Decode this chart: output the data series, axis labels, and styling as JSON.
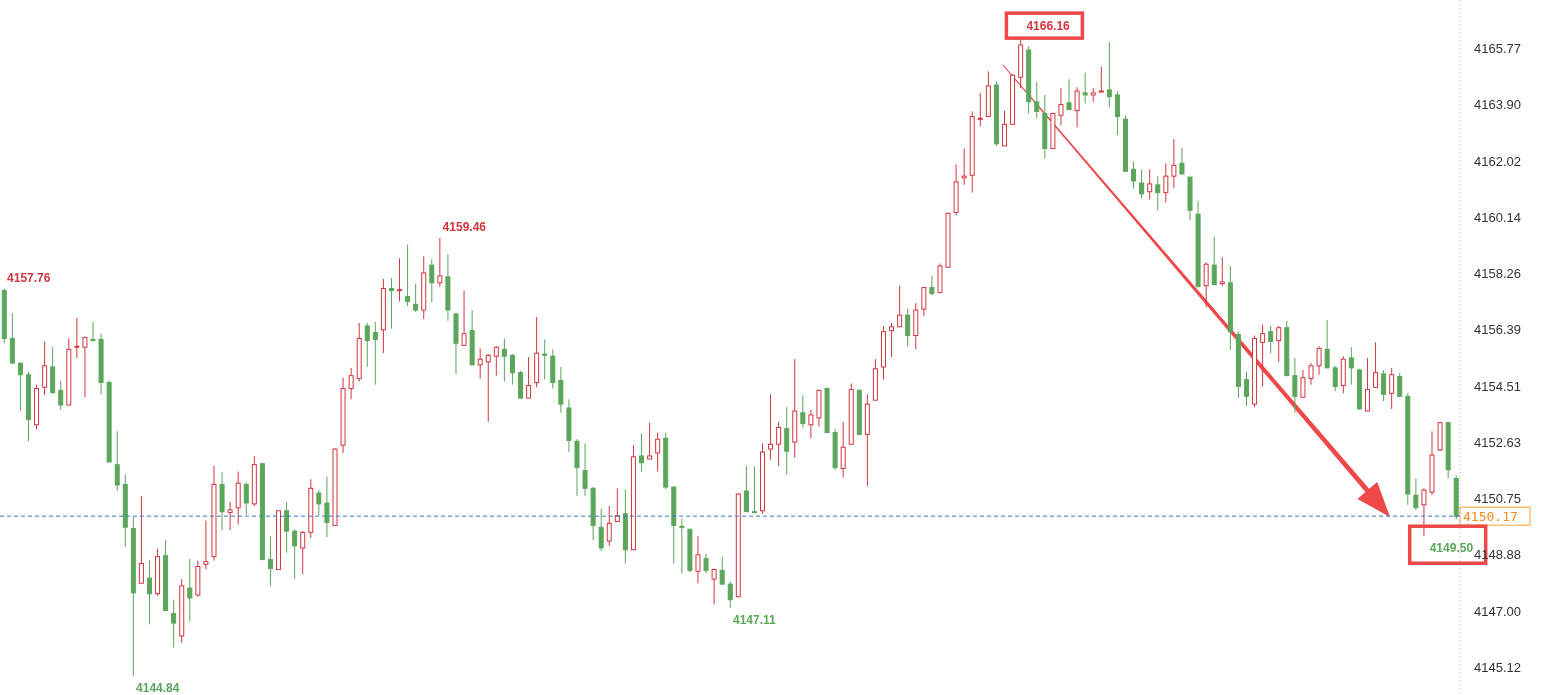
{
  "chart_data": {
    "type": "candlestick",
    "categories": [
      null,
      null,
      null,
      null,
      null,
      null,
      null,
      null,
      null,
      null,
      null,
      null,
      null,
      null,
      null,
      null,
      null,
      null,
      null,
      null,
      null,
      null,
      null,
      null,
      null,
      null,
      null,
      null,
      null,
      null,
      null,
      null,
      null,
      null,
      null,
      null,
      null,
      null,
      null,
      null,
      null,
      null,
      null,
      null,
      null,
      null,
      null,
      null,
      null,
      null,
      null,
      null,
      null,
      null,
      null,
      null,
      null,
      null,
      null,
      null,
      null,
      null,
      null,
      null,
      null,
      null,
      null,
      null,
      null,
      null,
      null,
      null,
      null,
      null,
      null,
      null,
      null,
      null,
      null,
      null,
      null,
      null,
      null,
      null,
      null,
      null,
      null,
      null,
      null,
      null,
      null,
      null,
      null,
      null,
      null,
      null,
      null,
      null,
      null,
      null,
      null,
      null,
      null,
      null,
      null,
      null,
      null,
      null,
      null,
      null,
      null,
      null,
      null,
      null,
      null,
      null,
      null,
      null,
      null,
      null,
      null,
      null,
      null,
      null,
      null,
      null,
      null,
      null,
      null,
      null,
      null,
      null,
      null,
      null,
      null,
      null,
      null,
      null,
      null,
      null,
      null,
      null,
      null,
      null,
      null,
      null,
      null,
      null,
      null,
      null,
      null,
      null,
      null,
      null,
      null,
      null,
      null,
      null,
      null,
      null,
      null,
      null,
      null,
      null,
      null,
      null,
      null,
      null,
      null,
      null,
      null,
      null,
      null,
      null,
      null,
      null,
      null,
      null,
      null,
      null,
      null
    ],
    "ohlc": [
      [
        4157.7,
        4157.76,
        4155.94,
        4156.1
      ],
      [
        4156.1,
        4156.95,
        4155.25,
        4155.28
      ],
      [
        4155.28,
        4155.28,
        4153.68,
        4154.89
      ],
      [
        4154.89,
        4154.99,
        4152.67,
        4153.39
      ],
      [
        4153.22,
        4154.56,
        4153.06,
        4154.43
      ],
      [
        4154.47,
        4156.0,
        4154.21,
        4155.19
      ],
      [
        4155.15,
        4155.81,
        4154.24,
        4154.3
      ],
      [
        4154.37,
        4154.7,
        4153.72,
        4153.88
      ],
      [
        4153.88,
        4156.1,
        4153.88,
        4155.74
      ],
      [
        4155.81,
        4156.79,
        4155.45,
        4155.84
      ],
      [
        4155.81,
        4156.17,
        4154.14,
        4156.13
      ],
      [
        4156.07,
        4156.66,
        4156.0,
        4156.03
      ],
      [
        4156.07,
        4156.26,
        4154.24,
        4154.63
      ],
      [
        4154.63,
        4154.7,
        4151.98,
        4151.98
      ],
      [
        4151.89,
        4153.0,
        4151.01,
        4151.21
      ],
      [
        4151.23,
        4151.56,
        4149.14,
        4149.8
      ],
      [
        4149.76,
        4150.16,
        4144.84,
        4147.61
      ],
      [
        4147.93,
        4150.84,
        4147.93,
        4148.59
      ],
      [
        4148.1,
        4148.69,
        4146.56,
        4147.58
      ],
      [
        4147.58,
        4149.08,
        4147.51,
        4148.82
      ],
      [
        4148.85,
        4149.37,
        4147.02,
        4147.02
      ],
      [
        4146.92,
        4147.38,
        4145.78,
        4146.6
      ],
      [
        4146.17,
        4148.07,
        4145.94,
        4147.84
      ],
      [
        4147.77,
        4148.75,
        4146.66,
        4147.44
      ],
      [
        4147.54,
        4148.69,
        4147.48,
        4148.49
      ],
      [
        4148.56,
        4150.02,
        4148.39,
        4148.65
      ],
      [
        4148.82,
        4151.85,
        4148.69,
        4151.23
      ],
      [
        4151.23,
        4151.63,
        4149.7,
        4150.32
      ],
      [
        4150.29,
        4150.65,
        4149.7,
        4150.38
      ],
      [
        4150.45,
        4151.66,
        4149.89,
        4151.27
      ],
      [
        4151.23,
        4151.3,
        4150.22,
        4150.61
      ],
      [
        4150.58,
        4152.18,
        4150.51,
        4151.89
      ],
      [
        4151.92,
        4151.95,
        4148.72,
        4148.72
      ],
      [
        4148.72,
        4149.5,
        4147.84,
        4148.42
      ],
      [
        4148.39,
        4150.35,
        4148.39,
        4150.35
      ],
      [
        4150.35,
        4150.65,
        4148.95,
        4149.67
      ],
      [
        4149.67,
        4149.73,
        4148.07,
        4149.18
      ],
      [
        4149.11,
        4149.67,
        4148.23,
        4149.63
      ],
      [
        4149.63,
        4151.4,
        4149.44,
        4151.1
      ],
      [
        4150.94,
        4151.04,
        4150.19,
        4150.58
      ],
      [
        4150.61,
        4151.49,
        4149.47,
        4149.96
      ],
      [
        4149.86,
        4152.44,
        4149.86,
        4152.41
      ],
      [
        4152.54,
        4154.79,
        4152.28,
        4154.43
      ],
      [
        4154.43,
        4155.12,
        4154.07,
        4154.86
      ],
      [
        4154.76,
        4156.62,
        4154.66,
        4156.1
      ],
      [
        4156.52,
        4156.62,
        4155.15,
        4156.03
      ],
      [
        4156.3,
        4156.66,
        4154.56,
        4156.07
      ],
      [
        4156.39,
        4158.09,
        4155.61,
        4157.77
      ],
      [
        4157.77,
        4158.12,
        4156.43,
        4157.7
      ],
      [
        4157.7,
        4158.78,
        4157.34,
        4157.73
      ],
      [
        4157.5,
        4159.23,
        4157.18,
        4157.34
      ],
      [
        4157.24,
        4157.93,
        4156.98,
        4157.05
      ],
      [
        4157.05,
        4158.84,
        4156.75,
        4158.29
      ],
      [
        4158.55,
        4158.75,
        4157.31,
        4157.96
      ],
      [
        4157.96,
        4159.46,
        4157.83,
        4158.19
      ],
      [
        4158.16,
        4158.91,
        4156.69,
        4157.05
      ],
      [
        4156.92,
        4156.95,
        4154.92,
        4155.94
      ],
      [
        4155.87,
        4157.7,
        4155.87,
        4156.26
      ],
      [
        4156.36,
        4157.05,
        4155.22,
        4155.22
      ],
      [
        4155.22,
        4155.77,
        4154.76,
        4155.41
      ],
      [
        4155.32,
        4155.58,
        4153.32,
        4155.54
      ],
      [
        4155.51,
        4155.84,
        4154.86,
        4155.81
      ],
      [
        4155.74,
        4156.1,
        4154.66,
        4155.51
      ],
      [
        4155.54,
        4155.58,
        4154.56,
        4154.96
      ],
      [
        4154.96,
        4155.02,
        4154.11,
        4154.11
      ],
      [
        4154.11,
        4155.48,
        4154.11,
        4154.53
      ],
      [
        4154.63,
        4156.82,
        4154.47,
        4155.61
      ],
      [
        4155.58,
        4156.07,
        4154.73,
        4155.54
      ],
      [
        4155.51,
        4155.74,
        4154.43,
        4154.63
      ],
      [
        4154.7,
        4155.15,
        4153.62,
        4153.91
      ],
      [
        4153.78,
        4154.07,
        4152.31,
        4152.7
      ],
      [
        4152.67,
        4152.74,
        4150.84,
        4151.79
      ],
      [
        4151.69,
        4152.6,
        4150.84,
        4151.1
      ],
      [
        4151.1,
        4151.14,
        4149.37,
        4149.86
      ],
      [
        4149.8,
        4150.42,
        4149.01,
        4149.11
      ],
      [
        4149.34,
        4150.51,
        4149.18,
        4149.93
      ],
      [
        4149.99,
        4151.1,
        4149.99,
        4150.19
      ],
      [
        4150.25,
        4151.07,
        4148.59,
        4149.05
      ],
      [
        4149.05,
        4152.54,
        4149.05,
        4152.15
      ],
      [
        4152.18,
        4152.93,
        4151.66,
        4151.95
      ],
      [
        4152.08,
        4153.29,
        4152.08,
        4152.18
      ],
      [
        4152.28,
        4152.96,
        4151.66,
        4152.74
      ],
      [
        4152.77,
        4152.96,
        4151.07,
        4151.14
      ],
      [
        4151.14,
        4151.17,
        4148.59,
        4149.86
      ],
      [
        4149.83,
        4150.09,
        4148.26,
        4149.8
      ],
      [
        4149.73,
        4149.76,
        4148.29,
        4148.36
      ],
      [
        4148.33,
        4149.5,
        4147.93,
        4148.88
      ],
      [
        4148.75,
        4148.91,
        4148.26,
        4148.36
      ],
      [
        4148.07,
        4148.42,
        4147.22,
        4148.39
      ],
      [
        4148.36,
        4148.82,
        4147.9,
        4147.9
      ],
      [
        4147.9,
        4148.0,
        4147.11,
        4147.38
      ],
      [
        4147.48,
        4150.94,
        4147.48,
        4150.91
      ],
      [
        4151.01,
        4151.85,
        4150.32,
        4150.32
      ],
      [
        4150.32,
        4151.82,
        4150.29,
        4150.29
      ],
      [
        4150.35,
        4152.6,
        4150.25,
        4152.31
      ],
      [
        4152.41,
        4154.24,
        4152.05,
        4152.57
      ],
      [
        4152.57,
        4153.32,
        4151.85,
        4153.13
      ],
      [
        4153.09,
        4153.81,
        4151.56,
        4152.34
      ],
      [
        4152.64,
        4155.41,
        4152.12,
        4153.68
      ],
      [
        4153.62,
        4154.21,
        4153.13,
        4153.26
      ],
      [
        4153.22,
        4153.72,
        4152.77,
        4153.55
      ],
      [
        4153.45,
        4154.4,
        4153.16,
        4154.37
      ],
      [
        4154.43,
        4154.47,
        4152.96,
        4152.96
      ],
      [
        4152.96,
        4153.09,
        4151.72,
        4151.79
      ],
      [
        4151.76,
        4153.32,
        4151.46,
        4152.47
      ],
      [
        4152.57,
        4154.6,
        4152.57,
        4154.4
      ],
      [
        4154.37,
        4154.4,
        4152.9,
        4152.9
      ],
      [
        4152.9,
        4154.24,
        4151.17,
        4153.91
      ],
      [
        4154.04,
        4155.41,
        4154.04,
        4155.09
      ],
      [
        4155.15,
        4156.52,
        4154.73,
        4156.33
      ],
      [
        4156.36,
        4156.62,
        4155.48,
        4156.49
      ],
      [
        4156.49,
        4157.86,
        4156.49,
        4156.88
      ],
      [
        4156.88,
        4157.11,
        4155.84,
        4156.2
      ],
      [
        4156.2,
        4157.28,
        4155.74,
        4157.05
      ],
      [
        4157.08,
        4157.83,
        4156.85,
        4157.8
      ],
      [
        4157.8,
        4158.19,
        4157.54,
        4157.6
      ],
      [
        4157.63,
        4158.61,
        4157.63,
        4158.52
      ],
      [
        4158.48,
        4160.31,
        4158.48,
        4160.28
      ],
      [
        4160.31,
        4161.91,
        4160.21,
        4161.33
      ],
      [
        4161.46,
        4162.44,
        4161.23,
        4161.52
      ],
      [
        4161.55,
        4163.68,
        4160.97,
        4163.51
      ],
      [
        4163.42,
        4164.3,
        4163.19,
        4163.45
      ],
      [
        4163.51,
        4165.02,
        4163.51,
        4164.53
      ],
      [
        4164.56,
        4164.69,
        4162.53,
        4162.6
      ],
      [
        4162.53,
        4163.71,
        4162.53,
        4163.25
      ],
      [
        4163.25,
        4164.92,
        4163.25,
        4164.89
      ],
      [
        4164.82,
        4166.16,
        4164.46,
        4165.9
      ],
      [
        4165.73,
        4165.86,
        4163.61,
        4164.0
      ],
      [
        4164.0,
        4164.66,
        4163.45,
        4163.68
      ],
      [
        4163.61,
        4164.23,
        4162.11,
        4162.44
      ],
      [
        4162.44,
        4163.64,
        4162.44,
        4163.61
      ],
      [
        4163.55,
        4164.46,
        4163.22,
        4163.91
      ],
      [
        4163.97,
        4164.75,
        4163.74,
        4163.74
      ],
      [
        4163.71,
        4164.49,
        4163.15,
        4164.36
      ],
      [
        4164.3,
        4164.98,
        4163.94,
        4164.23
      ],
      [
        4164.23,
        4164.46,
        4164.0,
        4164.3
      ],
      [
        4164.33,
        4165.18,
        4164.33,
        4164.36
      ],
      [
        4164.4,
        4166.0,
        4163.81,
        4164.17
      ],
      [
        4164.23,
        4164.36,
        4162.89,
        4163.51
      ],
      [
        4163.42,
        4163.55,
        4161.68,
        4161.68
      ],
      [
        4161.75,
        4162.01,
        4161.1,
        4161.36
      ],
      [
        4161.29,
        4161.75,
        4160.77,
        4160.93
      ],
      [
        4161.0,
        4161.75,
        4160.74,
        4161.26
      ],
      [
        4161.23,
        4161.52,
        4160.38,
        4160.97
      ],
      [
        4160.97,
        4161.95,
        4160.64,
        4161.52
      ],
      [
        4161.52,
        4162.76,
        4161.13,
        4161.88
      ],
      [
        4161.95,
        4162.47,
        4161.59,
        4161.59
      ],
      [
        4161.49,
        4161.49,
        4160.05,
        4160.38
      ],
      [
        4160.25,
        4160.7,
        4157.83,
        4157.83
      ],
      [
        4157.86,
        4158.65,
        4157.14,
        4158.58
      ],
      [
        4158.55,
        4159.5,
        4157.9,
        4157.9
      ],
      [
        4157.93,
        4158.81,
        4157.86,
        4157.99
      ],
      [
        4157.96,
        4158.52,
        4155.71,
        4156.33
      ],
      [
        4156.23,
        4156.33,
        4154.11,
        4154.5
      ],
      [
        4154.73,
        4154.99,
        4153.85,
        4154.17
      ],
      [
        4153.91,
        4156.2,
        4153.81,
        4156.1
      ],
      [
        4155.97,
        4156.56,
        4154.5,
        4156.26
      ],
      [
        4156.33,
        4156.52,
        4155.61,
        4156.0
      ],
      [
        4156.03,
        4156.52,
        4155.32,
        4156.46
      ],
      [
        4156.46,
        4156.69,
        4154.86,
        4154.86
      ],
      [
        4154.86,
        4155.45,
        4153.62,
        4154.17
      ],
      [
        4154.14,
        4155.05,
        4154.14,
        4154.79
      ],
      [
        4154.76,
        4155.28,
        4154.56,
        4155.19
      ],
      [
        4155.19,
        4155.84,
        4154.89,
        4155.77
      ],
      [
        4155.74,
        4156.72,
        4155.12,
        4155.12
      ],
      [
        4155.12,
        4155.19,
        4154.34,
        4154.5
      ],
      [
        4154.53,
        4155.51,
        4154.27,
        4155.41
      ],
      [
        4155.45,
        4155.81,
        4154.56,
        4155.12
      ],
      [
        4155.05,
        4155.09,
        4153.72,
        4153.75
      ],
      [
        4153.68,
        4155.45,
        4153.68,
        4154.4
      ],
      [
        4154.47,
        4155.97,
        4154.47,
        4154.96
      ],
      [
        4154.92,
        4155.05,
        4154.01,
        4154.24
      ],
      [
        4154.27,
        4155.12,
        4153.75,
        4154.89
      ],
      [
        4154.83,
        4154.96,
        4154.17,
        4154.17
      ],
      [
        4154.17,
        4154.27,
        4150.55,
        4150.91
      ],
      [
        4150.87,
        4151.43,
        4150.38,
        4150.45
      ],
      [
        4150.55,
        4151.1,
        4149.5,
        4151.04
      ],
      [
        4150.97,
        4153.0,
        4150.87,
        4152.21
      ],
      [
        4152.38,
        4153.32,
        4152.34,
        4153.29
      ],
      [
        4153.29,
        4153.32,
        4151.43,
        4151.72
      ],
      [
        4151.43,
        4151.53,
        4150.06,
        4150.17
      ]
    ],
    "ylim": [
      4144.2,
      4167.4
    ],
    "yticks": [
      4145.12,
      {
        "value": 4147,
        "label": "4147.00"
      },
      4148.88,
      4150.75,
      4152.63,
      4154.51,
      4156.39,
      4158.26,
      4160.14,
      4162.02,
      {
        "value": 4163.9,
        "label": "4163.90"
      },
      4165.77
    ],
    "tick_labels": "y",
    "ref_lines": [
      {
        "axis": "y",
        "value": 4150.17,
        "label": "4150.17",
        "color": "#2f7bc4",
        "line_style": "dashed"
      }
    ],
    "annotations": [
      "4157.76",
      "4159.46",
      "4166.16",
      "4147.11",
      "4144.84",
      "4149.50"
    ]
  }
}
